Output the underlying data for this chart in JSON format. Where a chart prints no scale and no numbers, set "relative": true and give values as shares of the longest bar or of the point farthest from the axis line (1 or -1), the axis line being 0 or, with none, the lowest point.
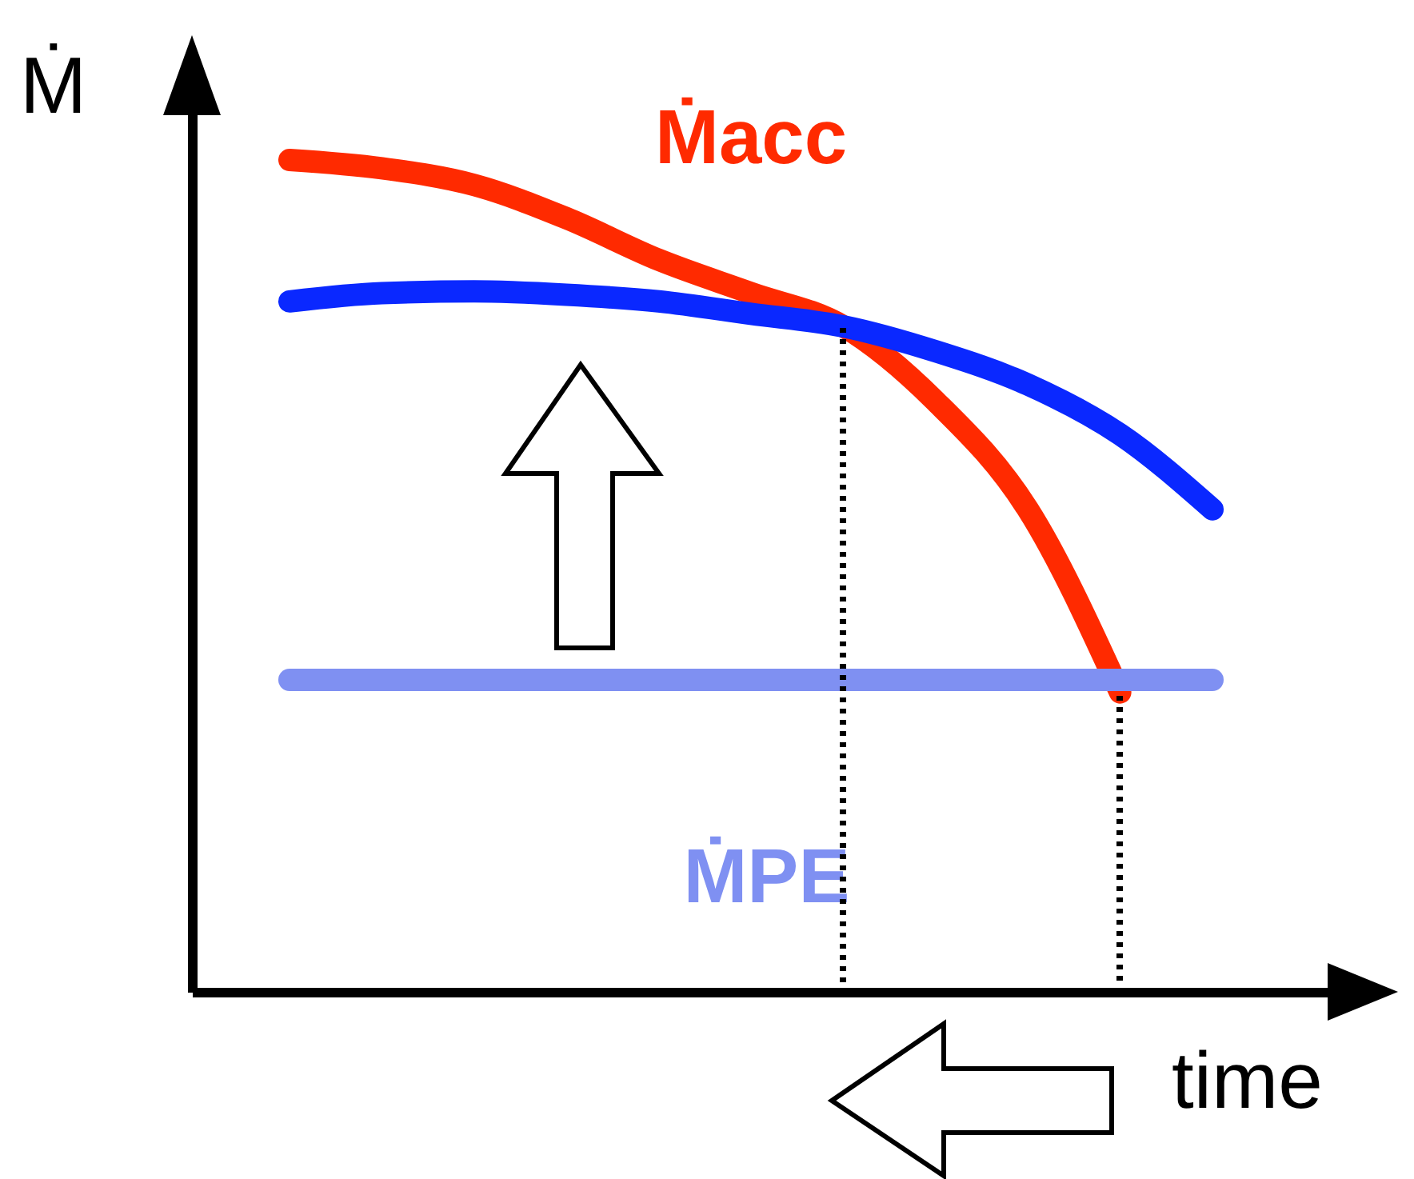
{
  "chart_data": {
    "type": "line",
    "relative": true,
    "xlabel": "time",
    "ylabel": "Ṁ",
    "categories": [
      null,
      null,
      null,
      null,
      null,
      null,
      null,
      null,
      null,
      null,
      null
    ],
    "series": [
      {
        "name": "Ṁacc",
        "color": "#ff2a00",
        "values": [
          1.0,
          0.99,
          0.97,
          0.93,
          0.88,
          0.84,
          0.8,
          0.71,
          0.58,
          0.36,
          null
        ]
      },
      {
        "color": "#0a28ff",
        "values": [
          0.83,
          0.84,
          0.842,
          0.838,
          0.83,
          0.815,
          0.8,
          0.77,
          0.73,
          0.67,
          0.58
        ]
      },
      {
        "name": "ṀPE",
        "color": "#7f90f2",
        "values": [
          0.375,
          0.375,
          0.375,
          0.375,
          0.375,
          0.375,
          0.375,
          0.375,
          0.375,
          0.375,
          0.375
        ]
      }
    ],
    "line_style": "solid"
  }
}
